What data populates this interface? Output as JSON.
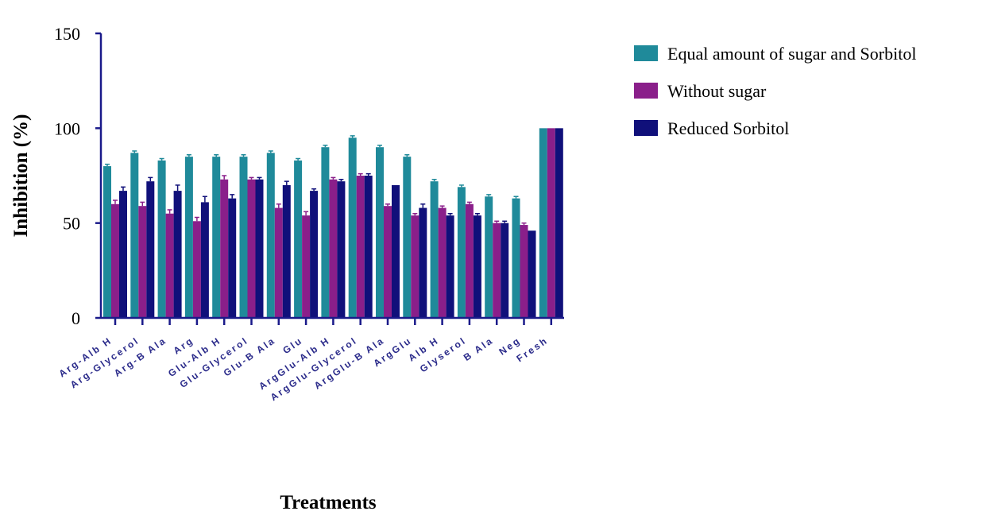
{
  "chart_data": {
    "type": "bar",
    "xlabel": "Treatments",
    "ylabel": "Inhibition (%)",
    "ylim": [
      0,
      150
    ],
    "yticks": [
      0,
      50,
      100,
      150
    ],
    "legend_position": "top-right",
    "categories": [
      "Arg-Alb H",
      "Arg-Glycerol",
      "Arg-B Ala",
      "Arg",
      "Glu-Alb H",
      "Glu-Glycerol",
      "Glu-B Ala",
      "Glu",
      "ArgGlu-Alb H",
      "ArgGlu-Glycerol",
      "ArgGlu-B Ala",
      "ArgGlu",
      "Alb H",
      "Glyserol",
      "B Ala",
      "Neg",
      "Fresh"
    ],
    "series": [
      {
        "name": "Equal amount of sugar and Sorbitol",
        "color": "#1f8a9a",
        "values": [
          80,
          87,
          83,
          85,
          85,
          85,
          87,
          83,
          90,
          95,
          90,
          85,
          72,
          69,
          64,
          63,
          100
        ],
        "errors": [
          1,
          1,
          1,
          1,
          1,
          1,
          1,
          1,
          1,
          1,
          1,
          1,
          1,
          1,
          1,
          1,
          0
        ]
      },
      {
        "name": "Without sugar",
        "color": "#8a1f8a",
        "values": [
          60,
          59,
          55,
          51,
          73,
          73,
          58,
          54,
          73,
          75,
          59,
          54,
          58,
          60,
          50,
          49,
          100
        ],
        "errors": [
          2,
          2,
          2,
          2,
          2,
          1,
          2,
          2,
          1,
          1,
          1,
          1,
          1,
          1,
          1,
          1,
          0
        ]
      },
      {
        "name": "Reduced Sorbitol",
        "color": "#10107a",
        "values": [
          67,
          72,
          67,
          61,
          63,
          73,
          70,
          67,
          72,
          75,
          70,
          58,
          54,
          54,
          50,
          46,
          100
        ],
        "errors": [
          2,
          2,
          3,
          3,
          2,
          1,
          2,
          1,
          1,
          1,
          0,
          2,
          1,
          1,
          1,
          0,
          0
        ]
      }
    ]
  }
}
